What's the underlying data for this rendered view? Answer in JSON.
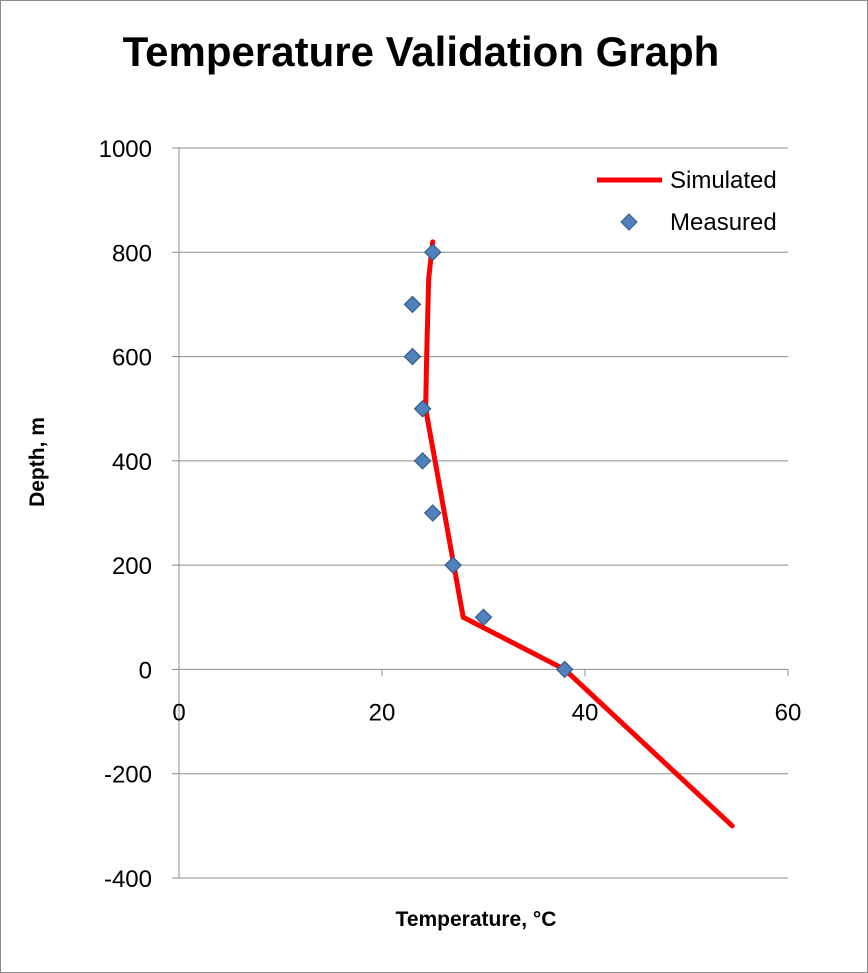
{
  "chart_data": {
    "type": "scatter",
    "title": "Temperature Validation Graph",
    "xlabel": "Temperature, °C",
    "ylabel": "Depth, m",
    "xlim": [
      0,
      60
    ],
    "ylim": [
      -400,
      1000
    ],
    "x_ticks": [
      "0",
      "20",
      "40",
      "60"
    ],
    "y_ticks": [
      "1000",
      "800",
      "600",
      "400",
      "200",
      "0",
      "-200",
      "-400"
    ],
    "grid": "horizontal",
    "legend_position": "top-right",
    "series": [
      {
        "name": "Simulated",
        "kind": "line",
        "color": "#ff0000",
        "points": [
          [
            25,
            820
          ],
          [
            24.6,
            750
          ],
          [
            24.4,
            600
          ],
          [
            24.3,
            500
          ],
          [
            28,
            100
          ],
          [
            38,
            0
          ],
          [
            54.5,
            -300
          ]
        ]
      },
      {
        "name": "Measured",
        "kind": "marker",
        "marker": "diamond",
        "color": "#4f81bd",
        "points": [
          [
            25,
            800
          ],
          [
            23,
            700
          ],
          [
            23,
            600
          ],
          [
            24,
            500
          ],
          [
            24,
            400
          ],
          [
            25,
            300
          ],
          [
            27,
            200
          ],
          [
            30,
            100
          ],
          [
            38,
            0
          ]
        ]
      }
    ]
  }
}
